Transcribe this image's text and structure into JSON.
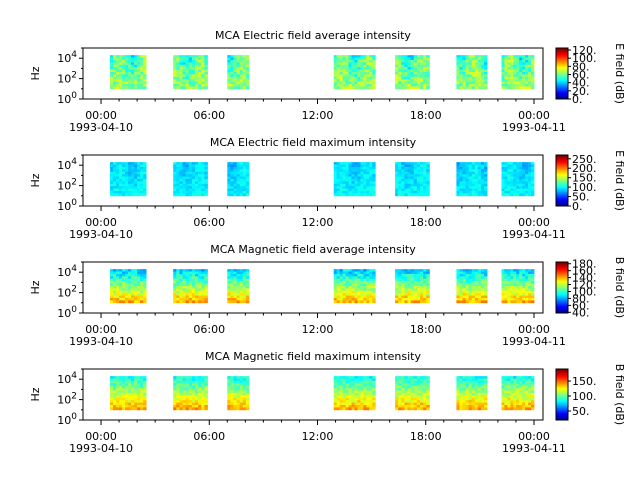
{
  "figure": {
    "background": "#ffffff"
  },
  "chart_data": [
    {
      "type": "heatmap",
      "title": "MCA  Electric field average intensity",
      "ylabel": "Hz",
      "yscale": "log",
      "ylim": [
        1,
        100000
      ],
      "yticks": [
        "10^0",
        "10^2",
        "10^4"
      ],
      "xticks": [
        "00:00",
        "06:00",
        "12:00",
        "18:00",
        "00:00"
      ],
      "xtick_dates": [
        "1993-04-10",
        "",
        "",
        "",
        "1993-04-11"
      ],
      "xlim_hours": [
        -1,
        24.5
      ],
      "colorbar": {
        "label": "E field (dB)",
        "ticks": [
          "0.",
          "20.",
          "40.",
          "60.",
          "80.",
          "100.",
          "120."
        ],
        "range": [
          0,
          125
        ],
        "colormap": "jet"
      },
      "data_blocks_hours": [
        [
          0.5,
          2.5
        ],
        [
          4.0,
          5.9
        ],
        [
          7.0,
          8.2
        ],
        [
          12.9,
          15.2
        ],
        [
          16.3,
          18.2
        ],
        [
          19.7,
          21.4
        ],
        [
          22.2,
          24.0
        ]
      ],
      "freq_range_hz": [
        10,
        20000
      ],
      "mean_level": 60,
      "no_data_color": "#ffffff"
    },
    {
      "type": "heatmap",
      "title": "MCA  Electric field maximum intensity",
      "ylabel": "Hz",
      "yscale": "log",
      "ylim": [
        1,
        100000
      ],
      "yticks": [
        "10^0",
        "10^2",
        "10^4"
      ],
      "xticks": [
        "00:00",
        "06:00",
        "12:00",
        "18:00",
        "00:00"
      ],
      "xtick_dates": [
        "1993-04-10",
        "",
        "",
        "",
        "1993-04-11"
      ],
      "xlim_hours": [
        -1,
        24.5
      ],
      "colorbar": {
        "label": "E field (dB)",
        "ticks": [
          "0.",
          "50.",
          "100.",
          "150.",
          "200.",
          "250."
        ],
        "range": [
          0,
          270
        ],
        "colormap": "jet"
      },
      "data_blocks_hours": [
        [
          0.5,
          2.5
        ],
        [
          4.0,
          5.9
        ],
        [
          7.0,
          8.2
        ],
        [
          12.9,
          15.2
        ],
        [
          16.3,
          18.2
        ],
        [
          19.7,
          21.4
        ],
        [
          22.2,
          24.0
        ]
      ],
      "freq_range_hz": [
        10,
        20000
      ],
      "mean_level": 95,
      "no_data_color": "#ffffff"
    },
    {
      "type": "heatmap",
      "title": "MCA  Magnetic field average intensity",
      "ylabel": "Hz",
      "yscale": "log",
      "ylim": [
        1,
        100000
      ],
      "yticks": [
        "10^0",
        "10^2",
        "10^4"
      ],
      "xticks": [
        "00:00",
        "06:00",
        "12:00",
        "18:00",
        "00:00"
      ],
      "xtick_dates": [
        "1993-04-10",
        "",
        "",
        "",
        "1993-04-11"
      ],
      "xlim_hours": [
        -1,
        24.5
      ],
      "colorbar": {
        "label": "B field (dB)",
        "ticks": [
          "40.",
          "60.",
          "80.",
          "100.",
          "120.",
          "140.",
          "160.",
          "180."
        ],
        "range": [
          38,
          185
        ],
        "colormap": "jet"
      },
      "data_blocks_hours": [
        [
          0.5,
          2.5
        ],
        [
          4.0,
          5.9
        ],
        [
          7.0,
          8.2
        ],
        [
          12.9,
          15.2
        ],
        [
          16.3,
          18.2
        ],
        [
          19.7,
          21.4
        ],
        [
          22.2,
          24.0
        ]
      ],
      "freq_range_hz": [
        10,
        20000
      ],
      "mean_level": 110,
      "no_data_color": "#ffffff"
    },
    {
      "type": "heatmap",
      "title": "MCA  Magnetic field maximum intensity",
      "ylabel": "Hz",
      "yscale": "log",
      "ylim": [
        1,
        100000
      ],
      "yticks": [
        "10^0",
        "10^2",
        "10^4"
      ],
      "xticks": [
        "00:00",
        "06:00",
        "12:00",
        "18:00",
        "00:00"
      ],
      "xtick_dates": [
        "1993-04-10",
        "",
        "",
        "",
        "1993-04-11"
      ],
      "xlim_hours": [
        -1,
        24.5
      ],
      "colorbar": {
        "label": "B field (dB)",
        "ticks": [
          "50.",
          "100.",
          "150."
        ],
        "range": [
          20,
          190
        ],
        "colormap": "jet"
      },
      "data_blocks_hours": [
        [
          0.5,
          2.5
        ],
        [
          4.0,
          5.9
        ],
        [
          7.0,
          8.2
        ],
        [
          12.9,
          15.2
        ],
        [
          16.3,
          18.2
        ],
        [
          19.7,
          21.4
        ],
        [
          22.2,
          24.0
        ]
      ],
      "freq_range_hz": [
        10,
        20000
      ],
      "mean_level": 110,
      "no_data_color": "#ffffff"
    }
  ]
}
